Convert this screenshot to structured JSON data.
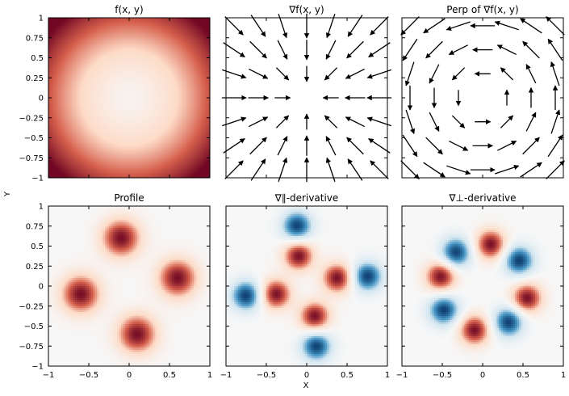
{
  "figure": {
    "xlabel": "X",
    "ylabel": "Y"
  },
  "chart_data": [
    {
      "id": "f",
      "type": "heatmap",
      "title": "f(x, y)",
      "colormap": "RdBu_r",
      "pattern": "radial bowl: pale near the center, deep red toward the corners",
      "xlim": [
        -1,
        1
      ],
      "ylim": [
        -1,
        1
      ],
      "yticks": [
        "1",
        "0.75",
        "0.5",
        "0.25",
        "0",
        "−0.25",
        "−0.5",
        "−0.75",
        "−1"
      ]
    },
    {
      "id": "grad",
      "type": "quiver",
      "title": "∇f(x, y)",
      "field": "radial",
      "direction": "toward center",
      "xlim": [
        -1,
        1
      ],
      "ylim": [
        -1,
        1
      ]
    },
    {
      "id": "perp",
      "type": "quiver",
      "title": "Perp of ∇f(x, y)",
      "field": "tangential",
      "direction": "counter-clockwise",
      "xlim": [
        -1,
        1
      ],
      "ylim": [
        -1,
        1
      ]
    },
    {
      "id": "profile",
      "type": "heatmap",
      "title": "Profile",
      "colormap": "RdBu_r",
      "xlim": [
        -1,
        1
      ],
      "ylim": [
        -1,
        1
      ],
      "xticks": [
        "−1",
        "−0.5",
        "0",
        "0.5",
        "1"
      ],
      "yticks": [
        "1",
        "0.75",
        "0.5",
        "0.25",
        "0",
        "−0.25",
        "−0.5",
        "−0.75",
        "−1"
      ],
      "blobs": [
        {
          "x": -0.1,
          "y": 0.6,
          "sign": 1
        },
        {
          "x": 0.6,
          "y": 0.1,
          "sign": 1
        },
        {
          "x": 0.1,
          "y": -0.6,
          "sign": 1
        },
        {
          "x": -0.6,
          "y": -0.1,
          "sign": 1
        }
      ]
    },
    {
      "id": "dpar",
      "type": "heatmap",
      "title": "∇∥-derivative",
      "colormap": "RdBu_r",
      "xlim": [
        -1,
        1
      ],
      "ylim": [
        -1,
        1
      ],
      "xticks": [
        "−1",
        "−0.5",
        "0",
        "0.5",
        "1"
      ],
      "blobs": [
        {
          "x": -0.1,
          "y": 0.38,
          "sign": 1
        },
        {
          "x": 0.38,
          "y": 0.1,
          "sign": 1
        },
        {
          "x": 0.1,
          "y": -0.38,
          "sign": 1
        },
        {
          "x": -0.38,
          "y": -0.1,
          "sign": 1
        },
        {
          "x": -0.12,
          "y": 0.75,
          "sign": -1
        },
        {
          "x": 0.75,
          "y": 0.12,
          "sign": -1
        },
        {
          "x": 0.12,
          "y": -0.75,
          "sign": -1
        },
        {
          "x": -0.75,
          "y": -0.12,
          "sign": -1
        }
      ]
    },
    {
      "id": "dperp",
      "type": "heatmap",
      "title": "∇⊥-derivative",
      "colormap": "RdBu_r",
      "xlim": [
        -1,
        1
      ],
      "ylim": [
        -1,
        1
      ],
      "xticks": [
        "−1",
        "−0.5",
        "0",
        "0.5",
        "1"
      ],
      "blobs": [
        {
          "x": 0.1,
          "y": 0.52,
          "sign": 1
        },
        {
          "x": 0.55,
          "y": -0.15,
          "sign": 1
        },
        {
          "x": -0.1,
          "y": -0.55,
          "sign": 1
        },
        {
          "x": -0.52,
          "y": 0.12,
          "sign": 1
        },
        {
          "x": -0.33,
          "y": 0.42,
          "sign": -1
        },
        {
          "x": 0.45,
          "y": 0.32,
          "sign": -1
        },
        {
          "x": 0.32,
          "y": -0.45,
          "sign": -1
        },
        {
          "x": -0.48,
          "y": -0.3,
          "sign": -1
        }
      ]
    }
  ]
}
